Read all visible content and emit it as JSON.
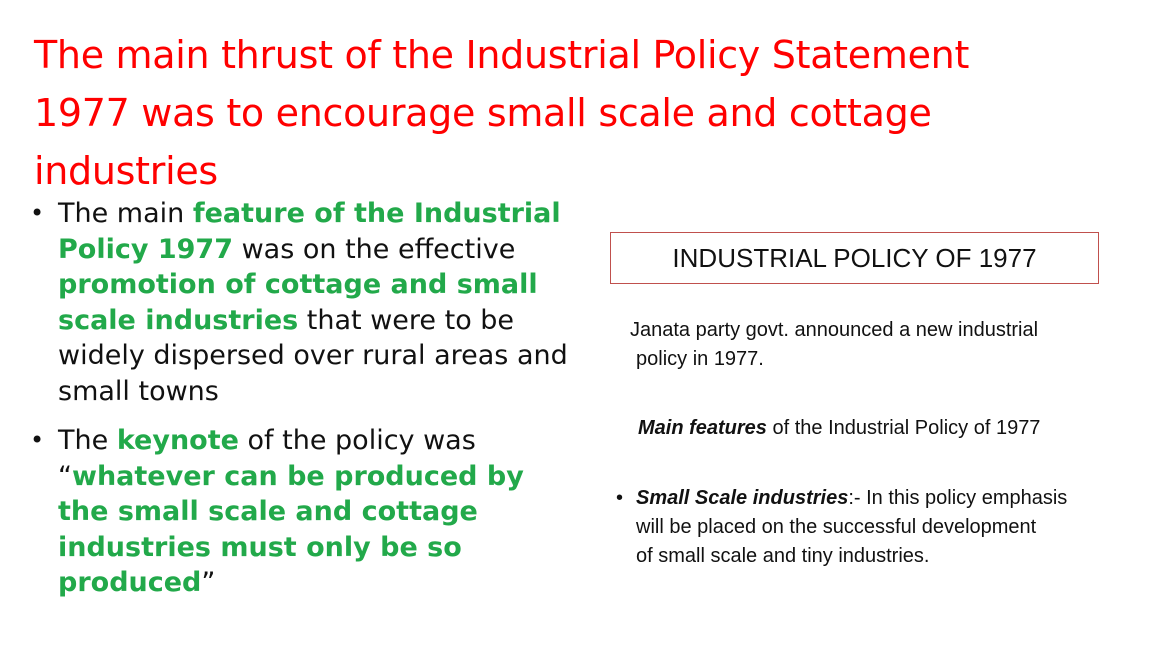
{
  "title": {
    "line1": "The main thrust of the Industrial Policy Statement",
    "line2": "1977 was to encourage small scale and cottage",
    "line3": "industries"
  },
  "bullets": {
    "b1": {
      "t1": "The main ",
      "h1": "feature of the Industrial Policy 1977",
      "t2": " was on the effective ",
      "h2": "promotion of cottage and small scale industries",
      "t3": " that were to be widely dispersed  over rural areas and small towns"
    },
    "b2": {
      "t1": "The ",
      "h1": "keynote",
      "t2": " of the policy was “",
      "h2": "whatever can be produced by the small scale and cottage industries must only be so produced",
      "t3": "”"
    }
  },
  "box": {
    "label": "INDUSTRIAL POLICY OF 1977"
  },
  "right": {
    "intro_line1": "Janata party govt. announced a new industrial",
    "intro_line2": "policy in 1977.",
    "features_bold": "Main  features",
    "features_rest": " of the Industrial Policy of 1977",
    "ssi_bold": "Small Scale industries",
    "ssi_line1": ":- In this policy emphasis",
    "ssi_line2": "will be placed on the successful development",
    "ssi_line3": "of small scale and tiny industries."
  },
  "colors": {
    "title": "#ff0000",
    "highlight": "#22a94a",
    "box_border": "#c0504d"
  }
}
